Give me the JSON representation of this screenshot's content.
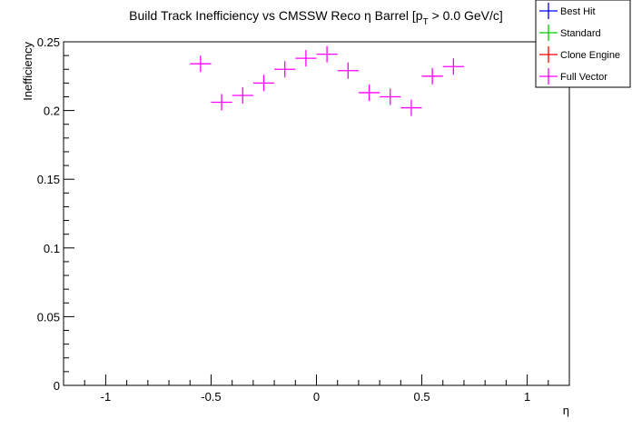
{
  "chart_data": {
    "type": "scatter",
    "title": "Build Track Inefficiency vs CMSSW Reco η Barrel [p",
    "title_sub": "T",
    "title_tail": " > 0.0 GeV/c]",
    "xlabel": "η",
    "ylabel": "Inefficiency",
    "xlim": [
      -1.2,
      1.2
    ],
    "ylim": [
      0,
      0.25
    ],
    "xticks": [
      -1,
      -0.5,
      0,
      0.5,
      1
    ],
    "xtick_labels": [
      "-1",
      "-0.5",
      "0",
      "0.5",
      "1"
    ],
    "yticks": [
      0,
      0.05,
      0.1,
      0.15,
      0.2,
      0.25
    ],
    "ytick_labels": [
      "0",
      "0.05",
      "0.1",
      "0.15",
      "0.2",
      "0.25"
    ],
    "legend_position": "top-right",
    "series": [
      {
        "name": "Best Hit",
        "color": "#0000ff",
        "x": [],
        "y": []
      },
      {
        "name": "Standard",
        "color": "#00cc00",
        "x": [],
        "y": []
      },
      {
        "name": "Clone Engine",
        "color": "#ff0000",
        "x": [],
        "y": []
      },
      {
        "name": "Full Vector",
        "color": "#ff00ff",
        "x": [
          -0.55,
          -0.45,
          -0.35,
          -0.25,
          -0.15,
          -0.05,
          0.05,
          0.15,
          0.25,
          0.35,
          0.45,
          0.55,
          0.65
        ],
        "y": [
          0.234,
          0.206,
          0.211,
          0.22,
          0.23,
          0.238,
          0.241,
          0.229,
          0.213,
          0.21,
          0.202,
          0.225,
          0.232
        ]
      }
    ]
  }
}
